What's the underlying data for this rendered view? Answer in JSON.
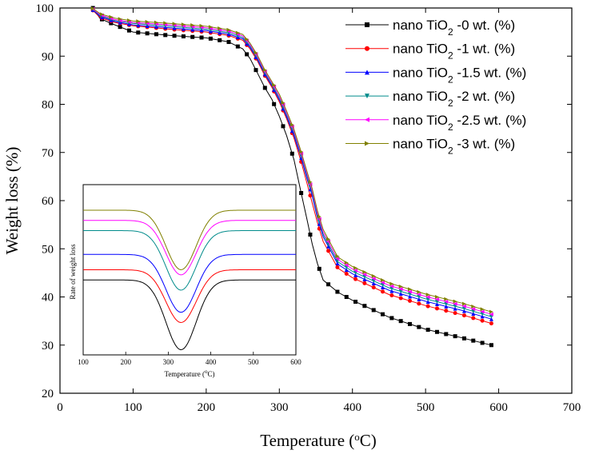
{
  "chart_data": [
    {
      "type": "line",
      "xlabel": "Temperature (°C)",
      "ylabel": "Weight loss (%)",
      "xlim": [
        0,
        700
      ],
      "ylim": [
        20,
        100
      ],
      "xticks": [
        0,
        100,
        200,
        300,
        400,
        500,
        600,
        700
      ],
      "yticks": [
        20,
        30,
        40,
        50,
        60,
        70,
        80,
        90,
        100
      ],
      "legend_position": "top-right",
      "series": [
        {
          "name": "nano TiO2 -0 wt. (%)",
          "color": "#000000",
          "marker": "square",
          "points": [
            [
              45,
              100
            ],
            [
              55,
              97.8
            ],
            [
              75,
              96.5
            ],
            [
              100,
              95.0
            ],
            [
              150,
              94.3
            ],
            [
              200,
              93.8
            ],
            [
              230,
              93.0
            ],
            [
              250,
              91.5
            ],
            [
              260,
              89.5
            ],
            [
              270,
              86.5
            ],
            [
              280,
              83.5
            ],
            [
              290,
              81.0
            ],
            [
              300,
              77.5
            ],
            [
              310,
              73.5
            ],
            [
              320,
              68.5
            ],
            [
              330,
              61.5
            ],
            [
              338,
              56.0
            ],
            [
              345,
              51.0
            ],
            [
              352,
              47.0
            ],
            [
              360,
              43.5
            ],
            [
              380,
              41.0
            ],
            [
              400,
              39.3
            ],
            [
              450,
              35.8
            ],
            [
              500,
              33.3
            ],
            [
              550,
              31.5
            ],
            [
              590,
              30.0
            ]
          ]
        },
        {
          "name": "nano TiO2 -1 wt. (%)",
          "color": "#ff0000",
          "marker": "circle",
          "points": [
            [
              45,
              99.5
            ],
            [
              55,
              98.0
            ],
            [
              75,
              97.0
            ],
            [
              100,
              96.3
            ],
            [
              150,
              95.6
            ],
            [
              200,
              95.0
            ],
            [
              230,
              94.3
            ],
            [
              250,
              93.3
            ],
            [
              260,
              91.5
            ],
            [
              270,
              89.0
            ],
            [
              280,
              86.0
            ],
            [
              290,
              83.5
            ],
            [
              300,
              80.5
            ],
            [
              310,
              77.0
            ],
            [
              320,
              73.0
            ],
            [
              330,
              68.0
            ],
            [
              338,
              63.5
            ],
            [
              345,
              59.5
            ],
            [
              352,
              55.5
            ],
            [
              360,
              51.5
            ],
            [
              380,
              46.0
            ],
            [
              400,
              44.0
            ],
            [
              450,
              40.5
            ],
            [
              500,
              38.2
            ],
            [
              550,
              36.3
            ],
            [
              590,
              34.5
            ]
          ]
        },
        {
          "name": "nano TiO2 -1.5 wt. (%)",
          "color": "#0000ff",
          "marker": "triangle-up",
          "points": [
            [
              45,
              99.6
            ],
            [
              55,
              98.2
            ],
            [
              75,
              97.2
            ],
            [
              100,
              96.5
            ],
            [
              150,
              95.9
            ],
            [
              200,
              95.3
            ],
            [
              230,
              94.6
            ],
            [
              250,
              93.6
            ],
            [
              260,
              91.8
            ],
            [
              270,
              89.3
            ],
            [
              280,
              86.3
            ],
            [
              290,
              83.8
            ],
            [
              300,
              80.9
            ],
            [
              310,
              77.4
            ],
            [
              320,
              73.5
            ],
            [
              330,
              68.8
            ],
            [
              338,
              64.5
            ],
            [
              345,
              61.0
            ],
            [
              352,
              56.5
            ],
            [
              360,
              52.5
            ],
            [
              380,
              46.8
            ],
            [
              400,
              44.8
            ],
            [
              450,
              41.4
            ],
            [
              500,
              39.1
            ],
            [
              550,
              37.2
            ],
            [
              590,
              35.4
            ]
          ]
        },
        {
          "name": "nano TiO2 -2 wt. (%)",
          "color": "#008b8b",
          "marker": "triangle-down",
          "points": [
            [
              45,
              99.7
            ],
            [
              55,
              98.4
            ],
            [
              75,
              97.4
            ],
            [
              100,
              96.8
            ],
            [
              150,
              96.2
            ],
            [
              200,
              95.6
            ],
            [
              230,
              94.9
            ],
            [
              250,
              93.9
            ],
            [
              260,
              92.1
            ],
            [
              270,
              89.6
            ],
            [
              280,
              86.6
            ],
            [
              290,
              84.1
            ],
            [
              300,
              81.3
            ],
            [
              310,
              77.8
            ],
            [
              320,
              74.0
            ],
            [
              330,
              69.3
            ],
            [
              338,
              65.0
            ],
            [
              345,
              61.5
            ],
            [
              352,
              57.0
            ],
            [
              360,
              53.0
            ],
            [
              380,
              47.3
            ],
            [
              400,
              45.3
            ],
            [
              450,
              41.9
            ],
            [
              500,
              39.6
            ],
            [
              550,
              37.7
            ],
            [
              590,
              35.9
            ]
          ]
        },
        {
          "name": "nano TiO2 -2.5 wt. (%)",
          "color": "#ff00ff",
          "marker": "triangle-left",
          "points": [
            [
              45,
              99.8
            ],
            [
              55,
              98.6
            ],
            [
              75,
              97.6
            ],
            [
              100,
              97.0
            ],
            [
              150,
              96.5
            ],
            [
              200,
              95.9
            ],
            [
              230,
              95.2
            ],
            [
              250,
              94.2
            ],
            [
              260,
              92.4
            ],
            [
              270,
              89.9
            ],
            [
              280,
              86.9
            ],
            [
              290,
              84.4
            ],
            [
              300,
              81.7
            ],
            [
              310,
              78.2
            ],
            [
              320,
              74.4
            ],
            [
              330,
              69.7
            ],
            [
              338,
              65.5
            ],
            [
              345,
              62.0
            ],
            [
              352,
              57.5
            ],
            [
              360,
              53.5
            ],
            [
              380,
              47.8
            ],
            [
              400,
              45.8
            ],
            [
              450,
              42.4
            ],
            [
              500,
              40.1
            ],
            [
              550,
              38.2
            ],
            [
              590,
              36.4
            ]
          ]
        },
        {
          "name": "nano TiO2 -3 wt. (%)",
          "color": "#808000",
          "marker": "triangle-right",
          "points": [
            [
              45,
              99.9
            ],
            [
              55,
              98.8
            ],
            [
              75,
              97.9
            ],
            [
              100,
              97.3
            ],
            [
              150,
              96.8
            ],
            [
              200,
              96.2
            ],
            [
              230,
              95.5
            ],
            [
              250,
              94.5
            ],
            [
              260,
              92.7
            ],
            [
              270,
              90.2
            ],
            [
              280,
              87.2
            ],
            [
              290,
              84.7
            ],
            [
              300,
              82.1
            ],
            [
              310,
              78.6
            ],
            [
              320,
              74.8
            ],
            [
              330,
              70.1
            ],
            [
              338,
              66.0
            ],
            [
              345,
              62.5
            ],
            [
              352,
              58.0
            ],
            [
              360,
              54.0
            ],
            [
              380,
              48.3
            ],
            [
              400,
              46.3
            ],
            [
              450,
              42.9
            ],
            [
              500,
              40.6
            ],
            [
              550,
              38.7
            ],
            [
              590,
              36.9
            ]
          ]
        }
      ]
    },
    {
      "type": "line",
      "inset": true,
      "xlabel": "Temperature (°C)",
      "ylabel": "Rate of weight loss",
      "xlim": [
        100,
        600
      ],
      "xticks": [
        100,
        200,
        300,
        400,
        500,
        600
      ],
      "ylim": [
        0,
        10
      ],
      "peak_center": 330,
      "peak_width": 50,
      "series": [
        {
          "name": "0 wt.",
          "color": "#000000",
          "baseline": 4.4,
          "minimum": 0.3
        },
        {
          "name": "1 wt.",
          "color": "#ff0000",
          "baseline": 5.0,
          "minimum": 1.9
        },
        {
          "name": "1.5 wt.",
          "color": "#0000ff",
          "baseline": 5.9,
          "minimum": 2.5
        },
        {
          "name": "2 wt.",
          "color": "#008b8b",
          "baseline": 7.3,
          "minimum": 3.8
        },
        {
          "name": "2.5 wt.",
          "color": "#ff00ff",
          "baseline": 7.9,
          "minimum": 4.7
        },
        {
          "name": "3 wt.",
          "color": "#808000",
          "baseline": 8.5,
          "minimum": 5.0
        }
      ]
    }
  ],
  "legend": [
    {
      "prefix": "nano TiO",
      "sub": "2",
      "suffix": " -0 wt. (%)"
    },
    {
      "prefix": "nano TiO",
      "sub": "2",
      "suffix": " -1 wt. (%)"
    },
    {
      "prefix": "nano TiO",
      "sub": "2",
      "suffix": " -1.5 wt. (%)"
    },
    {
      "prefix": "nano TiO",
      "sub": "2",
      "suffix": " -2 wt. (%)"
    },
    {
      "prefix": "nano TiO",
      "sub": "2",
      "suffix": " -2.5 wt. (%)"
    },
    {
      "prefix": "nano TiO",
      "sub": "2",
      "suffix": " -3 wt. (%)"
    }
  ],
  "axis_titles": {
    "x_main": "Temperature (",
    "x_sup": "o",
    "x_end": "C)",
    "y_main": "Weight loss (%)",
    "inset_x_main": "Temperature (",
    "inset_x_sup": "o",
    "inset_x_end": "C)",
    "inset_y": "Rate of weight loss"
  }
}
